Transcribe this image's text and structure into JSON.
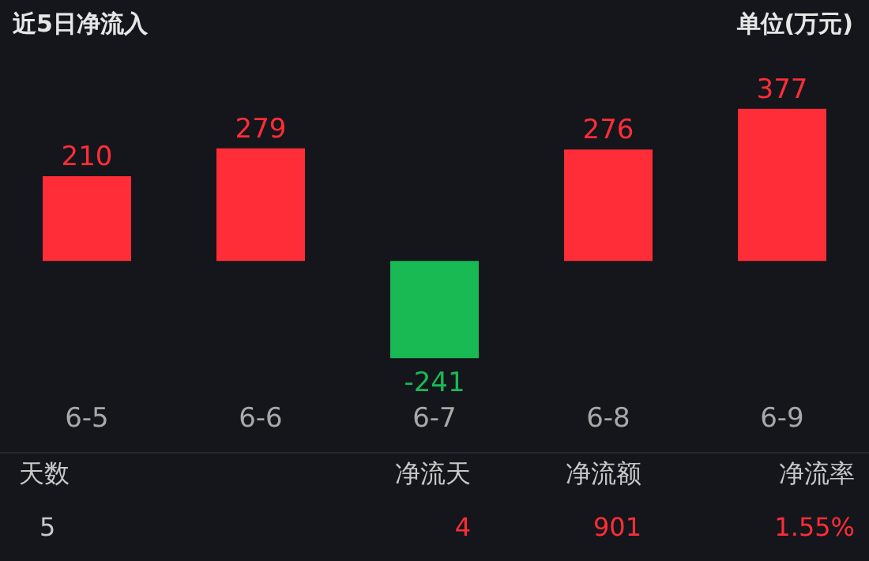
{
  "chart_data": {
    "type": "bar",
    "title": "近5日净流入",
    "ylabel": "单位(万元)",
    "categories": [
      "6-5",
      "6-6",
      "6-7",
      "6-8",
      "6-9"
    ],
    "values": [
      210,
      279,
      -241,
      276,
      377
    ],
    "colors": [
      "#ff2d37",
      "#ff2d37",
      "#19b954",
      "#ff2d37",
      "#ff2d37"
    ],
    "data_labels": true,
    "annotations": [
      "天数",
      "净流天",
      "净流额",
      "净流率",
      "5",
      "4",
      "901",
      "1.55%"
    ]
  }
}
